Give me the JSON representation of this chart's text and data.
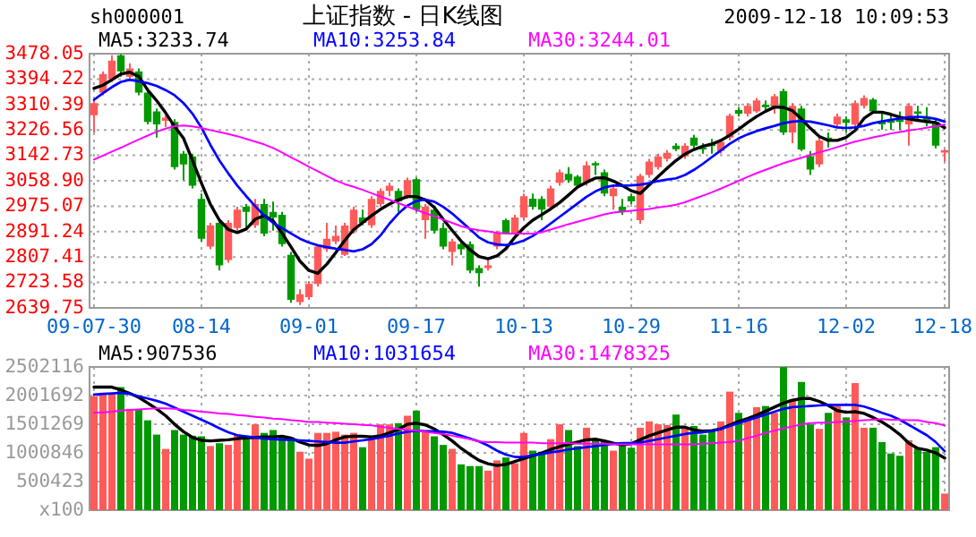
{
  "chart_data": [
    {
      "type": "candlestick",
      "title": "上证指数 - 日K线图",
      "subtitle": "sh000001",
      "annotations": [
        "2009-12-18 10:09:53"
      ],
      "categories": [
        "09-07-30",
        null,
        null,
        null,
        null,
        null,
        null,
        null,
        null,
        null,
        null,
        null,
        "08-14",
        null,
        null,
        null,
        null,
        null,
        null,
        null,
        null,
        null,
        null,
        null,
        "09-01",
        null,
        null,
        null,
        null,
        null,
        null,
        null,
        null,
        null,
        null,
        null,
        "09-17",
        null,
        null,
        null,
        null,
        null,
        null,
        null,
        null,
        null,
        null,
        null,
        "10-13",
        null,
        null,
        null,
        null,
        null,
        null,
        null,
        null,
        null,
        null,
        null,
        "10-29",
        null,
        null,
        null,
        null,
        null,
        null,
        null,
        null,
        null,
        null,
        null,
        "11-16",
        null,
        null,
        null,
        null,
        null,
        null,
        null,
        null,
        null,
        null,
        null,
        "12-02",
        null,
        null,
        null,
        null,
        null,
        null,
        null,
        null,
        null,
        null,
        "12-18"
      ],
      "ohlc": [
        [
          3275,
          3324,
          3218,
          3315
        ],
        [
          3350,
          3420,
          3341,
          3411
        ],
        [
          3394,
          3473,
          3385,
          3455
        ],
        [
          3473,
          3476,
          3402,
          3420
        ],
        [
          3402,
          3446,
          3394,
          3429
        ],
        [
          3420,
          3429,
          3341,
          3350
        ],
        [
          3350,
          3359,
          3245,
          3253
        ],
        [
          3288,
          3297,
          3201,
          3245
        ],
        [
          3257,
          3275,
          3236,
          3267
        ],
        [
          3253,
          3262,
          3096,
          3104
        ],
        [
          3148,
          3157,
          3061,
          3113
        ],
        [
          3139,
          3148,
          3034,
          3043
        ],
        [
          2999,
          3017,
          2859,
          2868
        ],
        [
          2842,
          2920,
          2833,
          2912
        ],
        [
          2920,
          2929,
          2763,
          2780
        ],
        [
          2798,
          2929,
          2789,
          2920
        ],
        [
          2903,
          2973,
          2894,
          2964
        ],
        [
          2973,
          2982,
          2903,
          2956
        ],
        [
          2912,
          2999,
          2903,
          2982
        ],
        [
          2982,
          2999,
          2876,
          2885
        ],
        [
          2956,
          2990,
          2894,
          2938
        ],
        [
          2947,
          2956,
          2842,
          2850
        ],
        [
          2815,
          2824,
          2657,
          2666
        ],
        [
          2659,
          2701,
          2649,
          2685
        ],
        [
          2675,
          2728,
          2666,
          2719
        ],
        [
          2719,
          2850,
          2710,
          2842
        ],
        [
          2833,
          2920,
          2824,
          2868
        ],
        [
          2859,
          2911,
          2850,
          2877
        ],
        [
          2815,
          2920,
          2811,
          2911
        ],
        [
          2894,
          2973,
          2885,
          2964
        ],
        [
          2938,
          2964,
          2912,
          2920
        ],
        [
          2912,
          3008,
          2903,
          2999
        ],
        [
          2982,
          3034,
          2973,
          3026
        ],
        [
          3026,
          3052,
          3008,
          3043
        ],
        [
          3026,
          3034,
          2956,
          2991
        ],
        [
          3008,
          3069,
          2999,
          3061
        ],
        [
          3064,
          3069,
          2956,
          2964
        ],
        [
          2929,
          2982,
          2868,
          2973
        ],
        [
          2964,
          2973,
          2885,
          2894
        ],
        [
          2903,
          2920,
          2833,
          2842
        ],
        [
          2824,
          2868,
          2780,
          2859
        ],
        [
          2850,
          2859,
          2815,
          2833
        ],
        [
          2850,
          2859,
          2754,
          2763
        ],
        [
          2771,
          2780,
          2710,
          2754
        ],
        [
          2771,
          2798,
          2763,
          2780
        ],
        [
          2842,
          2894,
          2833,
          2885
        ],
        [
          2929,
          2934,
          2882,
          2885
        ],
        [
          2885,
          2947,
          2882,
          2938
        ],
        [
          2938,
          3017,
          2929,
          3008
        ],
        [
          3000,
          3017,
          2964,
          2973
        ],
        [
          2999,
          3008,
          2929,
          2964
        ],
        [
          2973,
          3043,
          2964,
          3034
        ],
        [
          3052,
          3096,
          3043,
          3087
        ],
        [
          3082,
          3104,
          3052,
          3061
        ],
        [
          3073,
          3078,
          3034,
          3043
        ],
        [
          3052,
          3122,
          3043,
          3110
        ],
        [
          3117,
          3122,
          3078,
          3110
        ],
        [
          3087,
          3096,
          3008,
          3017
        ],
        [
          3008,
          3043,
          2964,
          3034
        ],
        [
          2973,
          2999,
          2947,
          2956
        ],
        [
          3008,
          3017,
          2982,
          2991
        ],
        [
          2929,
          3082,
          2917,
          3075
        ],
        [
          3078,
          3131,
          3069,
          3122
        ],
        [
          3104,
          3148,
          3096,
          3139
        ],
        [
          3131,
          3160,
          3122,
          3151
        ],
        [
          3175,
          3183,
          3157,
          3163
        ],
        [
          3139,
          3183,
          3131,
          3175
        ],
        [
          3201,
          3210,
          3166,
          3175
        ],
        [
          3169,
          3183,
          3148,
          3162
        ],
        [
          3180,
          3197,
          3148,
          3173
        ],
        [
          3157,
          3194,
          3148,
          3187
        ],
        [
          3201,
          3280,
          3192,
          3274
        ],
        [
          3292,
          3302,
          3271,
          3280
        ],
        [
          3280,
          3315,
          3271,
          3306
        ],
        [
          3288,
          3332,
          3283,
          3324
        ],
        [
          3310,
          3324,
          3285,
          3302
        ],
        [
          3302,
          3345,
          3280,
          3338
        ],
        [
          3355,
          3362,
          3210,
          3218
        ],
        [
          3218,
          3315,
          3183,
          3306
        ],
        [
          3297,
          3306,
          3157,
          3162
        ],
        [
          3140,
          3157,
          3078,
          3096
        ],
        [
          3113,
          3201,
          3104,
          3192
        ],
        [
          3201,
          3218,
          3169,
          3192
        ],
        [
          3245,
          3280,
          3236,
          3271
        ],
        [
          3262,
          3271,
          3218,
          3250
        ],
        [
          3245,
          3324,
          3236,
          3315
        ],
        [
          3306,
          3341,
          3297,
          3332
        ],
        [
          3327,
          3332,
          3280,
          3288
        ],
        [
          3257,
          3288,
          3227,
          3245
        ],
        [
          3257,
          3280,
          3227,
          3250
        ],
        [
          3267,
          3288,
          3227,
          3253
        ],
        [
          3245,
          3315,
          3175,
          3306
        ],
        [
          3288,
          3306,
          3262,
          3280
        ],
        [
          3267,
          3302,
          3239,
          3250
        ],
        [
          3253,
          3262,
          3166,
          3175
        ],
        [
          3152,
          3162,
          3122,
          3160
        ]
      ],
      "colors": [
        "#ff5a5a",
        "#ff5a5a",
        "#ff5a5a",
        "#009900",
        "#ff5a5a",
        "#009900",
        "#009900",
        "#009900",
        "#ff5a5a",
        "#009900",
        "#009900",
        "#009900",
        "#009900",
        "#ff5a5a",
        "#009900",
        "#ff5a5a",
        "#ff5a5a",
        "#009900",
        "#ff5a5a",
        "#009900",
        "#009900",
        "#009900",
        "#009900",
        "#ff5a5a",
        "#ff5a5a",
        "#ff5a5a",
        "#ff5a5a",
        "#ff5a5a",
        "#ff5a5a",
        "#ff5a5a",
        "#009900",
        "#ff5a5a",
        "#ff5a5a",
        "#ff5a5a",
        "#009900",
        "#ff5a5a",
        "#009900",
        "#ff5a5a",
        "#009900",
        "#009900",
        "#ff5a5a",
        "#009900",
        "#009900",
        "#009900",
        "#ff5a5a",
        "#ff5a5a",
        "#009900",
        "#ff5a5a",
        "#ff5a5a",
        "#009900",
        "#009900",
        "#ff5a5a",
        "#ff5a5a",
        "#009900",
        "#009900",
        "#ff5a5a",
        "#009900",
        "#009900",
        "#ff5a5a",
        "#009900",
        "#009900",
        "#ff5a5a",
        "#ff5a5a",
        "#ff5a5a",
        "#ff5a5a",
        "#009900",
        "#ff5a5a",
        "#009900",
        "#009900",
        "#009900",
        "#ff5a5a",
        "#ff5a5a",
        "#009900",
        "#ff5a5a",
        "#ff5a5a",
        "#009900",
        "#ff5a5a",
        "#009900",
        "#ff5a5a",
        "#009900",
        "#009900",
        "#ff5a5a",
        "#009900",
        "#ff5a5a",
        "#009900",
        "#ff5a5a",
        "#ff5a5a",
        "#009900",
        "#009900",
        "#009900",
        "#009900",
        "#ff5a5a",
        "#009900",
        "#009900",
        "#009900",
        "#ff5a5a"
      ],
      "ylim": [
        2639.75,
        3478.05
      ],
      "yticks": [
        2639.75,
        2723.58,
        2807.41,
        2891.24,
        2975.07,
        {
          "value": 3058.9,
          "label": "3058.90"
        },
        3142.73,
        3226.56,
        3310.39,
        3394.22,
        3478.05
      ],
      "grid": true,
      "legend": "top",
      "series": [
        {
          "type": "line",
          "name": "MA5:3233.74",
          "color": "#000000",
          "values": [
            3364,
            3374,
            3392,
            3411,
            3417,
            3403,
            3358,
            3323,
            3283,
            3238,
            3199,
            3126,
            3051,
            2981,
            2929,
            2898,
            2888,
            2900,
            2932,
            2944,
            2927,
            2886,
            2841,
            2794,
            2763,
            2754,
            2784,
            2822,
            2862,
            2898,
            2921,
            2944,
            2965,
            2982,
            2996,
            3007,
            3007,
            2996,
            2971,
            2932,
            2895,
            2860,
            2831,
            2809,
            2802,
            2811,
            2835,
            2873,
            2904,
            2929,
            2947,
            2966,
            2987,
            3012,
            3038,
            3054,
            3068,
            3069,
            3058,
            3043,
            3026,
            3017,
            3045,
            3073,
            3100,
            3126,
            3147,
            3162,
            3173,
            3180,
            3192,
            3209,
            3229,
            3251,
            3271,
            3288,
            3302,
            3301,
            3290,
            3263,
            3232,
            3205,
            3192,
            3192,
            3202,
            3225,
            3265,
            3285,
            3285,
            3278,
            3269,
            3263,
            3258,
            3254,
            3251,
            3234
          ]
        },
        {
          "type": "line",
          "name": "MA10:3253.84",
          "color": "#0000ff",
          "values": [
            3326,
            3348,
            3368,
            3385,
            3392,
            3387,
            3381,
            3372,
            3358,
            3341,
            3315,
            3280,
            3234,
            3177,
            3126,
            3083,
            3043,
            3008,
            2975,
            2944,
            2920,
            2903,
            2885,
            2868,
            2855,
            2846,
            2840,
            2835,
            2831,
            2826,
            2833,
            2850,
            2879,
            2918,
            2951,
            2977,
            2992,
            2997,
            2990,
            2973,
            2951,
            2925,
            2899,
            2872,
            2856,
            2849,
            2847,
            2852,
            2862,
            2877,
            2896,
            2918,
            2940,
            2962,
            2984,
            3006,
            3024,
            3037,
            3043,
            3043,
            3044,
            3046,
            3051,
            3058,
            3063,
            3067,
            3078,
            3095,
            3115,
            3137,
            3159,
            3181,
            3199,
            3212,
            3223,
            3232,
            3240,
            3249,
            3254,
            3256,
            3254,
            3248,
            3242,
            3235,
            3233,
            3235,
            3240,
            3249,
            3255,
            3260,
            3264,
            3269,
            3270,
            3268,
            3263,
            3254
          ]
        },
        {
          "type": "line",
          "name": "MA30:3244.01",
          "color": "#ff00ff",
          "values": [
            3129,
            3142,
            3155,
            3168,
            3182,
            3195,
            3208,
            3221,
            3231,
            3239,
            3241,
            3238,
            3233,
            3226,
            3220,
            3213,
            3206,
            3197,
            3188,
            3179,
            3167,
            3152,
            3136,
            3121,
            3105,
            3090,
            3075,
            3060,
            3048,
            3039,
            3029,
            3018,
            3007,
            2996,
            2985,
            2974,
            2963,
            2952,
            2942,
            2931,
            2920,
            2909,
            2901,
            2896,
            2892,
            2887,
            2885,
            2885,
            2885,
            2885,
            2889,
            2898,
            2907,
            2916,
            2924,
            2932,
            2940,
            2948,
            2954,
            2957,
            2960,
            2963,
            2966,
            2971,
            2975,
            2980,
            2988,
            2999,
            3010,
            3021,
            3033,
            3046,
            3059,
            3072,
            3084,
            3095,
            3106,
            3117,
            3126,
            3135,
            3144,
            3153,
            3161,
            3170,
            3179,
            3188,
            3195,
            3202,
            3208,
            3215,
            3220,
            3225,
            3229,
            3234,
            3239,
            3244
          ]
        }
      ]
    },
    {
      "type": "bar",
      "categories": [
        null,
        null,
        null,
        null,
        null,
        null,
        null,
        null,
        null,
        null,
        null,
        null,
        null,
        null,
        null,
        null,
        null,
        null,
        null,
        null,
        null,
        null,
        null,
        null,
        null,
        null,
        null,
        null,
        null,
        null,
        null,
        null,
        null,
        null,
        null,
        null,
        null,
        null,
        null,
        null,
        null,
        null,
        null,
        null,
        null,
        null,
        null,
        null,
        null,
        null,
        null,
        null,
        null,
        null,
        null,
        null,
        null,
        null,
        null,
        null,
        null,
        null,
        null,
        null,
        null,
        null,
        null,
        null,
        null,
        null,
        null,
        null,
        null,
        null,
        null,
        null,
        null,
        null,
        null,
        null,
        null,
        null,
        null,
        null,
        null,
        null,
        null,
        null,
        null,
        null,
        null,
        null,
        null,
        null,
        null,
        null
      ],
      "values": [
        1990000,
        2050000,
        2050000,
        2150000,
        1770000,
        1770000,
        1570000,
        1320000,
        1070000,
        1400000,
        1320000,
        1300000,
        1290000,
        1120000,
        1170000,
        1140000,
        1320000,
        1290000,
        1500000,
        1350000,
        1400000,
        1290000,
        1270000,
        1020000,
        900000,
        1350000,
        1350000,
        1370000,
        1320000,
        1350000,
        1100000,
        1290000,
        1500000,
        1500000,
        1520000,
        1650000,
        1740000,
        1370000,
        1290000,
        1140000,
        1070000,
        800000,
        770000,
        770000,
        690000,
        870000,
        920000,
        820000,
        1350000,
        1040000,
        1020000,
        1240000,
        1500000,
        1400000,
        1120000,
        1440000,
        1240000,
        1220000,
        1040000,
        1140000,
        1090000,
        1440000,
        1550000,
        1500000,
        1490000,
        1670000,
        1440000,
        1470000,
        1320000,
        1400000,
        1550000,
        2070000,
        1700000,
        1600000,
        1800000,
        1820000,
        1700000,
        2500000,
        1940000,
        2240000,
        1500000,
        1420000,
        1700000,
        1820000,
        1620000,
        2220000,
        1440000,
        1440000,
        1190000,
        990000,
        950000,
        1220000,
        1090000,
        1020000,
        1100000,
        290000
      ],
      "colors": [
        "#ff5a5a",
        "#ff5a5a",
        "#ff5a5a",
        "#009900",
        "#ff5a5a",
        "#009900",
        "#009900",
        "#009900",
        "#ff5a5a",
        "#009900",
        "#009900",
        "#009900",
        "#009900",
        "#ff5a5a",
        "#009900",
        "#ff5a5a",
        "#ff5a5a",
        "#009900",
        "#ff5a5a",
        "#009900",
        "#009900",
        "#009900",
        "#009900",
        "#ff5a5a",
        "#ff5a5a",
        "#ff5a5a",
        "#ff5a5a",
        "#ff5a5a",
        "#ff5a5a",
        "#ff5a5a",
        "#009900",
        "#ff5a5a",
        "#ff5a5a",
        "#ff5a5a",
        "#009900",
        "#ff5a5a",
        "#009900",
        "#ff5a5a",
        "#009900",
        "#009900",
        "#ff5a5a",
        "#009900",
        "#009900",
        "#009900",
        "#ff5a5a",
        "#ff5a5a",
        "#009900",
        "#ff5a5a",
        "#ff5a5a",
        "#009900",
        "#009900",
        "#ff5a5a",
        "#ff5a5a",
        "#009900",
        "#009900",
        "#ff5a5a",
        "#009900",
        "#009900",
        "#ff5a5a",
        "#009900",
        "#009900",
        "#ff5a5a",
        "#ff5a5a",
        "#ff5a5a",
        "#ff5a5a",
        "#009900",
        "#ff5a5a",
        "#009900",
        "#009900",
        "#009900",
        "#ff5a5a",
        "#ff5a5a",
        "#009900",
        "#ff5a5a",
        "#ff5a5a",
        "#009900",
        "#ff5a5a",
        "#009900",
        "#ff5a5a",
        "#009900",
        "#009900",
        "#ff5a5a",
        "#009900",
        "#ff5a5a",
        "#009900",
        "#ff5a5a",
        "#ff5a5a",
        "#009900",
        "#009900",
        "#009900",
        "#009900",
        "#ff5a5a",
        "#009900",
        "#009900",
        "#009900",
        "#ff5a5a"
      ],
      "ylim": [
        0,
        2502116
      ],
      "yticks": [
        {
          "value": 0,
          "label": "x100"
        },
        500423,
        1000846,
        1501269,
        2001692,
        2502116
      ],
      "tick_labels": "y",
      "grid": true,
      "legend": "top",
      "series": [
        {
          "type": "line",
          "name": "MA5:907536",
          "color": "#000000",
          "values": [
            2150000,
            2150000,
            2150000,
            2100000,
            2040000,
            1970000,
            1870000,
            1770000,
            1650000,
            1500000,
            1370000,
            1270000,
            1220000,
            1210000,
            1220000,
            1230000,
            1250000,
            1260000,
            1270000,
            1280000,
            1280000,
            1290000,
            1260000,
            1190000,
            1140000,
            1130000,
            1160000,
            1230000,
            1280000,
            1290000,
            1290000,
            1280000,
            1300000,
            1350000,
            1410000,
            1500000,
            1520000,
            1490000,
            1420000,
            1320000,
            1210000,
            1080000,
            970000,
            870000,
            810000,
            780000,
            800000,
            850000,
            900000,
            950000,
            1000000,
            1060000,
            1110000,
            1150000,
            1190000,
            1230000,
            1240000,
            1210000,
            1170000,
            1140000,
            1160000,
            1230000,
            1300000,
            1350000,
            1400000,
            1450000,
            1450000,
            1400000,
            1380000,
            1390000,
            1420000,
            1490000,
            1550000,
            1600000,
            1660000,
            1730000,
            1800000,
            1870000,
            1920000,
            1950000,
            1950000,
            1900000,
            1830000,
            1740000,
            1710000,
            1720000,
            1690000,
            1620000,
            1540000,
            1440000,
            1320000,
            1170000,
            1080000,
            1050000,
            1000000,
            910000
          ]
        },
        {
          "type": "line",
          "name": "MA10:1031654",
          "color": "#0000ff",
          "values": [
            2020000,
            2030000,
            2040000,
            2050000,
            2030000,
            1990000,
            1950000,
            1910000,
            1860000,
            1790000,
            1720000,
            1650000,
            1580000,
            1510000,
            1430000,
            1360000,
            1310000,
            1290000,
            1270000,
            1250000,
            1240000,
            1230000,
            1230000,
            1220000,
            1210000,
            1200000,
            1190000,
            1180000,
            1180000,
            1200000,
            1220000,
            1240000,
            1270000,
            1300000,
            1340000,
            1370000,
            1390000,
            1380000,
            1380000,
            1370000,
            1350000,
            1300000,
            1250000,
            1200000,
            1130000,
            1040000,
            970000,
            930000,
            930000,
            960000,
            980000,
            1010000,
            1030000,
            1060000,
            1080000,
            1100000,
            1120000,
            1140000,
            1160000,
            1170000,
            1170000,
            1180000,
            1210000,
            1240000,
            1270000,
            1300000,
            1330000,
            1350000,
            1360000,
            1380000,
            1420000,
            1470000,
            1520000,
            1570000,
            1620000,
            1670000,
            1720000,
            1770000,
            1800000,
            1810000,
            1820000,
            1830000,
            1840000,
            1840000,
            1840000,
            1840000,
            1810000,
            1760000,
            1700000,
            1650000,
            1580000,
            1490000,
            1400000,
            1310000,
            1190000,
            1030000
          ]
        },
        {
          "type": "line",
          "name": "MA30:1478325",
          "color": "#ff00ff",
          "values": [
            1700000,
            1710000,
            1720000,
            1740000,
            1750000,
            1760000,
            1770000,
            1780000,
            1780000,
            1770000,
            1750000,
            1740000,
            1720000,
            1710000,
            1690000,
            1680000,
            1660000,
            1650000,
            1630000,
            1620000,
            1600000,
            1590000,
            1570000,
            1560000,
            1540000,
            1540000,
            1530000,
            1520000,
            1510000,
            1500000,
            1490000,
            1480000,
            1460000,
            1440000,
            1420000,
            1400000,
            1390000,
            1370000,
            1350000,
            1330000,
            1300000,
            1270000,
            1240000,
            1200000,
            1190000,
            1190000,
            1180000,
            1180000,
            1180000,
            1180000,
            1170000,
            1170000,
            1170000,
            1170000,
            1160000,
            1160000,
            1160000,
            1160000,
            1150000,
            1150000,
            1150000,
            1150000,
            1150000,
            1150000,
            1150000,
            1150000,
            1150000,
            1150000,
            1160000,
            1170000,
            1180000,
            1190000,
            1210000,
            1260000,
            1300000,
            1350000,
            1390000,
            1430000,
            1460000,
            1500000,
            1520000,
            1530000,
            1530000,
            1540000,
            1550000,
            1560000,
            1570000,
            1580000,
            1590000,
            1580000,
            1580000,
            1570000,
            1570000,
            1540000,
            1520000,
            1480000
          ]
        }
      ]
    }
  ]
}
